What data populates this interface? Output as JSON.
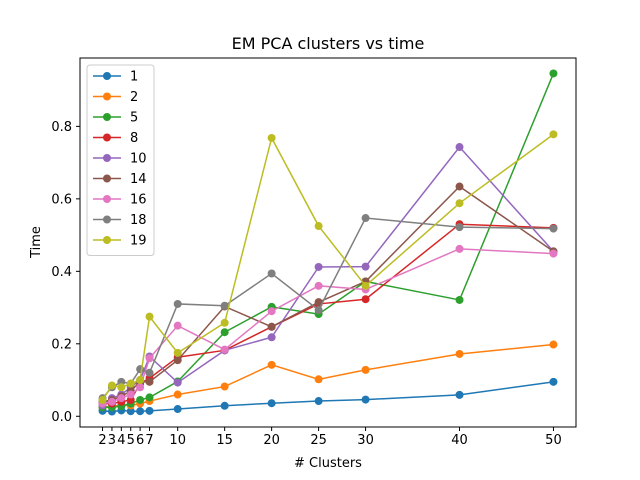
{
  "chart_data": {
    "type": "line",
    "title": "EM PCA clusters vs time",
    "xlabel": "# Clusters",
    "ylabel": "Time",
    "x": [
      2,
      3,
      4,
      5,
      6,
      7,
      10,
      15,
      20,
      25,
      30,
      40,
      50
    ],
    "x_ticks": [
      2,
      3,
      4,
      5,
      6,
      7,
      10,
      15,
      20,
      25,
      30,
      40,
      50
    ],
    "y_ticks": [
      "0.0",
      "0.2",
      "0.4",
      "0.6",
      "0.8"
    ],
    "xlim": [
      -0.4,
      52.4
    ],
    "ylim": [
      -0.0296,
      0.9887
    ],
    "grid": false,
    "legend_position": "top-left",
    "series": [
      {
        "name": "1",
        "color": "#1f77b4",
        "values": [
          0.015,
          0.013,
          0.016,
          0.014,
          0.014,
          0.015,
          0.02,
          0.029,
          0.036,
          0.042,
          0.046,
          0.059,
          0.095
        ]
      },
      {
        "name": "2",
        "color": "#ff7f0e",
        "values": [
          0.025,
          0.028,
          0.03,
          0.03,
          0.035,
          0.042,
          0.06,
          0.082,
          0.142,
          0.102,
          0.128,
          0.172,
          0.198
        ]
      },
      {
        "name": "5",
        "color": "#2ca02c",
        "values": [
          0.025,
          0.025,
          0.028,
          0.035,
          0.045,
          0.052,
          0.096,
          0.232,
          0.302,
          0.282,
          0.372,
          0.321,
          0.946
        ]
      },
      {
        "name": "8",
        "color": "#d62728",
        "values": [
          0.035,
          0.035,
          0.04,
          0.045,
          0.09,
          0.105,
          0.163,
          0.182,
          0.247,
          0.31,
          0.323,
          0.53,
          0.52
        ]
      },
      {
        "name": "10",
        "color": "#9467bd",
        "values": [
          0.03,
          0.05,
          0.06,
          0.08,
          0.1,
          0.165,
          0.093,
          0.182,
          0.218,
          0.412,
          0.413,
          0.743,
          0.455
        ]
      },
      {
        "name": "14",
        "color": "#8c564b",
        "values": [
          0.04,
          0.045,
          0.055,
          0.07,
          0.095,
          0.095,
          0.155,
          0.303,
          0.247,
          0.315,
          0.372,
          0.634,
          0.455
        ]
      },
      {
        "name": "16",
        "color": "#e377c2",
        "values": [
          0.035,
          0.04,
          0.05,
          0.06,
          0.08,
          0.16,
          0.25,
          0.184,
          0.29,
          0.36,
          0.35,
          0.462,
          0.449
        ]
      },
      {
        "name": "18",
        "color": "#7f7f7f",
        "values": [
          0.05,
          0.08,
          0.095,
          0.09,
          0.13,
          0.12,
          0.31,
          0.305,
          0.394,
          0.293,
          0.547,
          0.522,
          0.518
        ]
      },
      {
        "name": "19",
        "color": "#bcbd22",
        "values": [
          0.045,
          0.085,
          0.08,
          0.09,
          0.1,
          0.275,
          0.175,
          0.258,
          0.768,
          0.525,
          0.36,
          0.588,
          0.778
        ]
      }
    ]
  }
}
